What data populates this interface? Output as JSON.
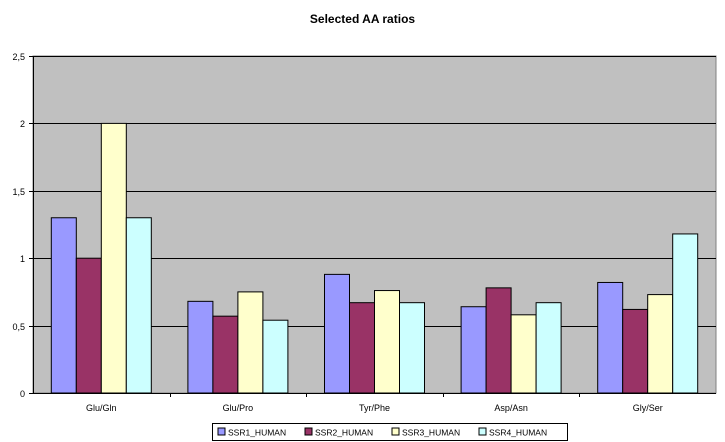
{
  "chart_data": {
    "type": "bar",
    "title": "Selected AA ratios",
    "xlabel": "",
    "ylabel": "",
    "categories": [
      "Glu/Gln",
      "Glu/Pro",
      "Tyr/Phe",
      "Asp/Asn",
      "Gly/Ser"
    ],
    "series": [
      {
        "name": "SSR1_HUMAN",
        "color": "#9999ff",
        "values": [
          1.3,
          0.68,
          0.88,
          0.64,
          0.82
        ]
      },
      {
        "name": "SSR2_HUMAN",
        "color": "#993366",
        "values": [
          1.0,
          0.57,
          0.67,
          0.78,
          0.62
        ]
      },
      {
        "name": "SSR3_HUMAN",
        "color": "#ffffcc",
        "values": [
          2.0,
          0.75,
          0.76,
          0.58,
          0.73
        ]
      },
      {
        "name": "SSR4_HUMAN",
        "color": "#ccffff",
        "values": [
          1.3,
          0.54,
          0.67,
          0.67,
          1.18
        ]
      }
    ],
    "ylim": [
      0,
      2.5
    ],
    "yticks": [
      "0",
      "0,5",
      "1",
      "1,5",
      "2",
      "2,5"
    ],
    "ytick_values": [
      0,
      0.5,
      1,
      1.5,
      2,
      2.5
    ],
    "grid": true,
    "legend_position": "bottom",
    "plot_background": "#c0c0c0"
  }
}
